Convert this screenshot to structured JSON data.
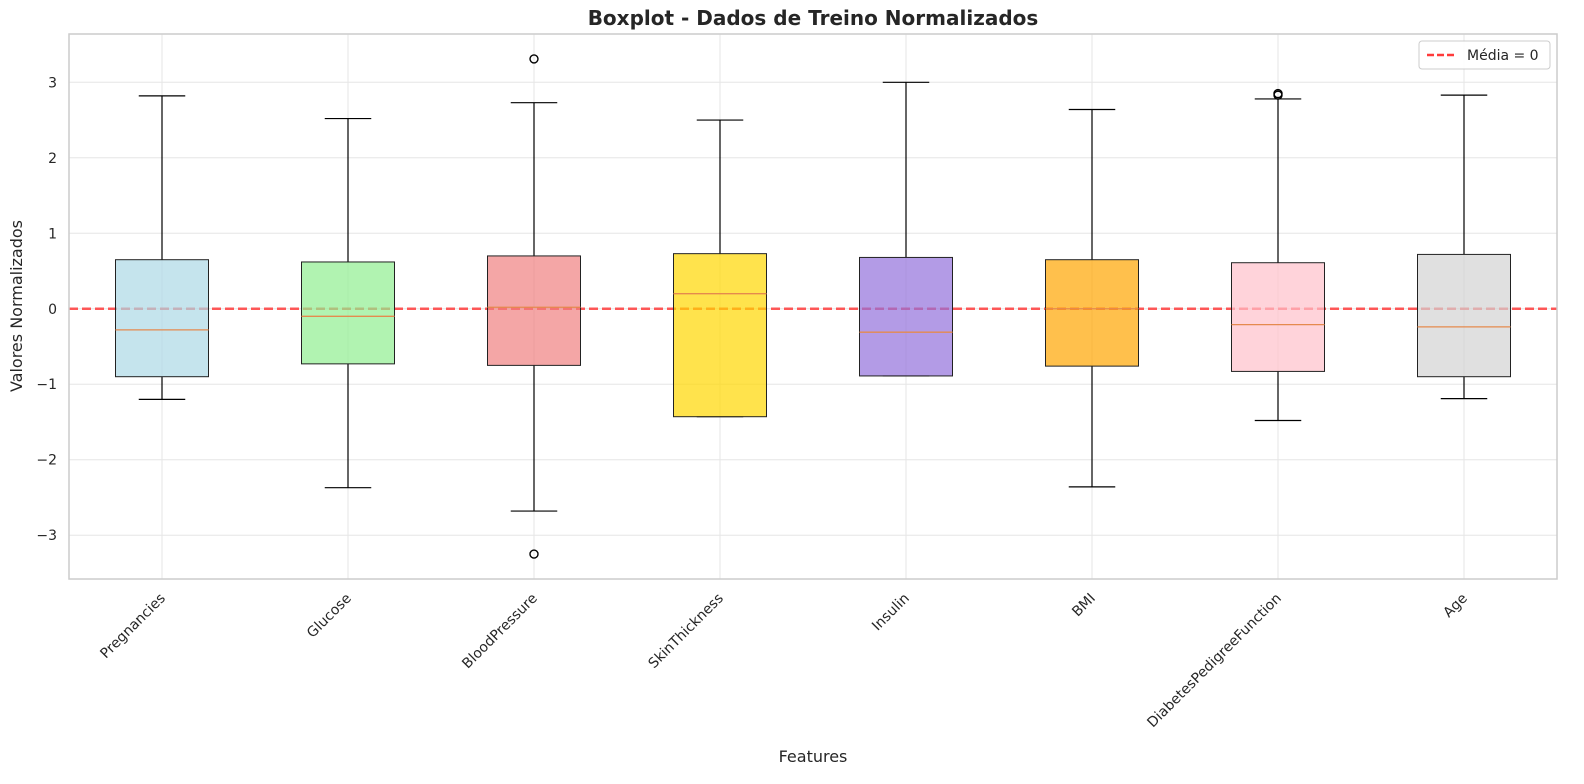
{
  "chart_data": {
    "type": "boxplot",
    "title": "Boxplot - Dados de Treino Normalizados",
    "xlabel": "Features",
    "ylabel": "Valores Normalizados",
    "ylim": [
      -3.58,
      3.64
    ],
    "yticks": [
      -3,
      -2,
      -1,
      0,
      1,
      2,
      3
    ],
    "yticklabels": [
      "−3",
      "−2",
      "−1",
      "0",
      "1",
      "2",
      "3"
    ],
    "grid": true,
    "legend": {
      "position": "top-right",
      "entries": [
        {
          "label": "Média = 0",
          "color": "#ff3b3b",
          "style": "dashed"
        }
      ]
    },
    "reference_line": {
      "y": 0,
      "color": "#ff3b3b"
    },
    "median_color": "#e58a4e",
    "categories": [
      "Pregnancies",
      "Glucose",
      "BloodPressure",
      "SkinThickness",
      "Insulin",
      "BMI",
      "DiabetesPedigreeFunction",
      "Age"
    ],
    "boxes": [
      {
        "name": "Pregnancies",
        "whisker_low": -1.2,
        "q1": -0.9,
        "median": -0.28,
        "q3": 0.65,
        "whisker_high": 2.82,
        "outliers": [],
        "color": "#add8e6"
      },
      {
        "name": "Glucose",
        "whisker_low": -2.37,
        "q1": -0.73,
        "median": -0.1,
        "q3": 0.62,
        "whisker_high": 2.52,
        "outliers": [],
        "color": "#90ee90"
      },
      {
        "name": "BloodPressure",
        "whisker_low": -2.68,
        "q1": -0.75,
        "median": 0.02,
        "q3": 0.7,
        "whisker_high": 2.73,
        "outliers": [
          3.31,
          -3.25
        ],
        "color": "#f08080"
      },
      {
        "name": "SkinThickness",
        "whisker_low": -1.43,
        "q1": -1.43,
        "median": 0.2,
        "q3": 0.73,
        "whisker_high": 2.5,
        "outliers": [],
        "color": "#ffd700"
      },
      {
        "name": "Insulin",
        "whisker_low": -0.89,
        "q1": -0.89,
        "median": -0.31,
        "q3": 0.68,
        "whisker_high": 3.0,
        "outliers": [],
        "color": "#9370db"
      },
      {
        "name": "BMI",
        "whisker_low": -2.36,
        "q1": -0.76,
        "median": 0.0,
        "q3": 0.65,
        "whisker_high": 2.64,
        "outliers": [],
        "color": "#ffa500"
      },
      {
        "name": "DiabetesPedigreeFunction",
        "whisker_low": -1.48,
        "q1": -0.83,
        "median": -0.21,
        "q3": 0.61,
        "whisker_high": 2.78,
        "outliers": [
          2.83,
          2.85
        ],
        "color": "#ffc0cb"
      },
      {
        "name": "Age",
        "whisker_low": -1.19,
        "q1": -0.9,
        "median": -0.24,
        "q3": 0.72,
        "whisker_high": 2.83,
        "outliers": [],
        "color": "#d3d3d3"
      }
    ]
  }
}
